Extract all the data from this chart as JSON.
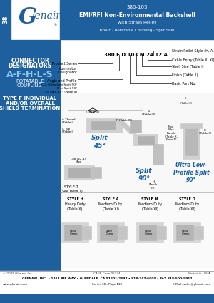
{
  "header_bg": "#1e5f9e",
  "page_tab": "38",
  "title_series": "380-103",
  "title_main": "EMI/RFI Non-Environmental Backshell",
  "title_sub1": "with Strain Relief",
  "title_sub2": "Type F - Rotatable Coupling - Split Shell",
  "logo_text": "Glenair.",
  "connector_line1": "CONNECTOR",
  "connector_line2": "DESIGNATORS",
  "designator_letters": "A-F-H-L-S",
  "rotatable_line1": "ROTATABLE",
  "rotatable_line2": "COUPLING",
  "type_line1": "TYPE F INDIVIDUAL",
  "type_line2": "AND/OR OVERALL",
  "type_line3": "SHIELD TERMINATION",
  "pn": "380 F D 103 M 24 12 A",
  "pn_label_product": "Product Series",
  "pn_label_connector": "Connector\nDesignator",
  "pn_label_angle": "Angle and Profile",
  "pn_label_angle_c": "C = Ultra-Low Split 90°",
  "pn_label_angle_d": "D = Split 90°",
  "pn_label_angle_f": "F = Split 45° (Note 4)",
  "pn_label_basic": "Basic Part No.",
  "pn_label_finish": "Finish (Table II)",
  "pn_label_shell": "Shell Size (Table I)",
  "pn_label_cable": "Cable Entry (Table X, XI)",
  "pn_label_strain": "Strain Relief Style (H, A, M, D)",
  "split45_label": "Split\n45°",
  "split90_label": "Split\n90°",
  "ultra_label": "Ultra Low-\nProfile Split\n90°",
  "style2_label": "STYLE 2\n(See Note 1)",
  "style_h": "STYLE H\nHeavy Duty\n(Table X)",
  "style_a": "STYLE A\nMedium Duty\n(Table XI)",
  "style_m": "STYLE M\nMedium Duty\n(Table XI)",
  "style_d": "STYLE D\nMedium Duty\n(Table XI)",
  "dim_a": "A Thread\n(Table I)",
  "dim_c": "C Typ\n(Table I)",
  "dim_e": "E\n(Table III)",
  "dim_f": "F (Table III)",
  "dim_g": "G\n(Table III)",
  "dim_h4": "H\n(Table\nXI)",
  "dim_k": "K\n(Table II)",
  "dim_l": "L'",
  "dim_mwb": "Max\nWire\nBundle\n(Table X,\nNote 1)",
  "dim_88": ".88 (22.4)\nMax",
  "footer_copy": "© 2005 Glenair, Inc.",
  "footer_cage": "CAGE Code 06324",
  "footer_printed": "Printed in U.S.A.",
  "footer_company": "GLENAIR, INC. • 1211 AIR WAY • GLENDALE, CA 91201-2497 • 818-247-6000 • FAX 818-500-9912",
  "footer_web": "www.glenair.com",
  "footer_series": "Series 38 - Page 110",
  "footer_email": "E-Mail: sales@glenair.com",
  "bg_white": "#ffffff",
  "bg_light": "#f5f5f5",
  "text_black": "#1a1a1a",
  "blue_accent": "#1e5f9e",
  "split_blue": "#1a5fa0"
}
